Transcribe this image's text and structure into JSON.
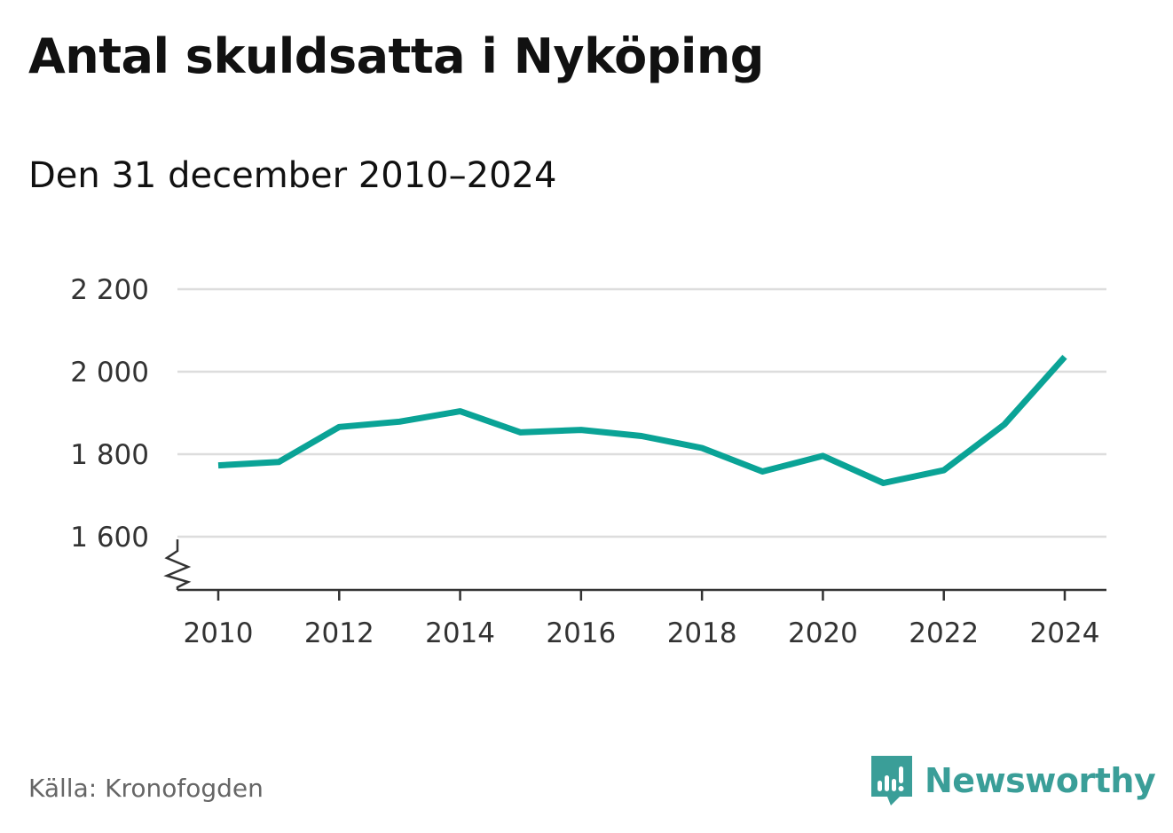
{
  "title": "Antal skuldsatta i Nyköping",
  "subtitle": "Den 31 december 2010–2024",
  "source": "Källa: Kronofogden",
  "brand": {
    "name": "Newsworthy",
    "icon": "bar-chart-speech-bubble-icon",
    "color": "#3a9e98"
  },
  "colors": {
    "line": "#0aa396",
    "grid": "#dddddd",
    "axis": "#333333",
    "tick_text": "#333333"
  },
  "chart_data": {
    "type": "line",
    "title": "Antal skuldsatta i Nyköping",
    "subtitle": "Den 31 december 2010–2024",
    "xlabel": "",
    "ylabel": "",
    "x": [
      2010,
      2011,
      2012,
      2013,
      2014,
      2015,
      2016,
      2017,
      2018,
      2019,
      2020,
      2021,
      2022,
      2023,
      2024
    ],
    "series": [
      {
        "values": [
          1773,
          1781,
          1866,
          1879,
          1904,
          1853,
          1859,
          1844,
          1815,
          1758,
          1796,
          1730,
          1761,
          1872,
          2036
        ]
      }
    ],
    "xlim": [
      2010,
      2024
    ],
    "ylim": [
      1600,
      2200
    ],
    "y_axis_break": true,
    "x_ticks": [
      "2010",
      "2012",
      "2014",
      "2016",
      "2018",
      "2020",
      "2022",
      "2024"
    ],
    "y_ticks": [
      "1 600",
      "1 800",
      "2 000",
      "2 200"
    ],
    "grid": "horizontal",
    "legend": "none"
  }
}
